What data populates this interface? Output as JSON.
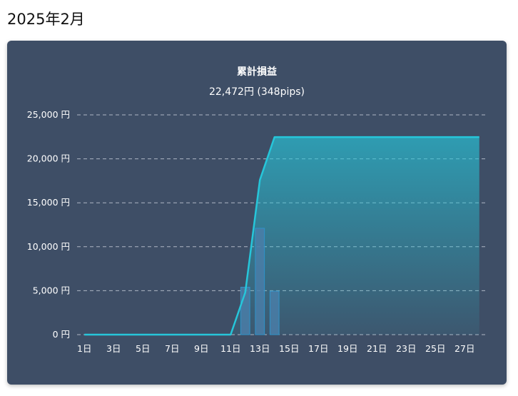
{
  "page": {
    "title": "2025年2月"
  },
  "chart_data": {
    "type": "line",
    "title": "累計損益",
    "subtitle": "22,472円 (348pips)",
    "xlabel": "",
    "ylabel": "",
    "ylim": [
      0,
      25000
    ],
    "y_ticks": [
      0,
      5000,
      10000,
      15000,
      20000,
      25000
    ],
    "y_tick_labels": [
      "0 円",
      "5,000 円",
      "10,000 円",
      "15,000 円",
      "20,000 円",
      "25,000 円"
    ],
    "x": [
      1,
      2,
      3,
      4,
      5,
      6,
      7,
      8,
      9,
      10,
      11,
      12,
      13,
      14,
      15,
      16,
      17,
      18,
      19,
      20,
      21,
      22,
      23,
      24,
      25,
      26,
      27,
      28
    ],
    "x_tick_labels": [
      "1日",
      "3日",
      "5日",
      "7日",
      "9日",
      "11日",
      "13日",
      "15日",
      "17日",
      "19日",
      "21日",
      "23日",
      "25日",
      "27日"
    ],
    "x_tick_values": [
      1,
      3,
      5,
      7,
      9,
      11,
      13,
      15,
      17,
      19,
      21,
      23,
      25,
      27
    ],
    "grid": true,
    "series": [
      {
        "kind": "line",
        "values": [
          0,
          0,
          0,
          0,
          0,
          0,
          0,
          0,
          0,
          0,
          0,
          4800,
          17600,
          22472,
          22472,
          22472,
          22472,
          22472,
          22472,
          22472,
          22472,
          22472,
          22472,
          22472,
          22472,
          22472,
          22472,
          22472
        ]
      },
      {
        "kind": "bar",
        "values": [
          0,
          0,
          0,
          0,
          0,
          0,
          0,
          0,
          0,
          0,
          0,
          5400,
          12100,
          4950,
          0,
          0,
          0,
          0,
          0,
          0,
          0,
          0,
          0,
          0,
          0,
          0,
          0,
          0
        ]
      }
    ],
    "colors": {
      "line": "#26c6da",
      "bar_fill": "#4a7ea8",
      "bar_stroke": "#2f93c9",
      "panel": "#3e4e66"
    }
  }
}
